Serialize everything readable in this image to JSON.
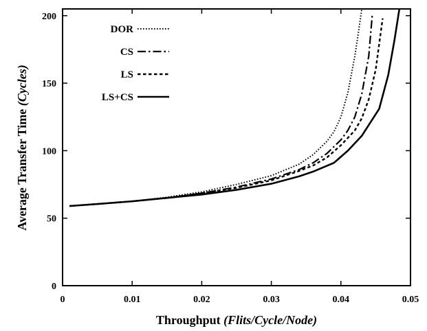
{
  "chart_data": {
    "type": "line",
    "title": "",
    "xlabel": "Throughput",
    "xlabel_unit": "(Flits/Cycle/Node)",
    "ylabel": "Average Transfer Time",
    "ylabel_unit": "(Cycles)",
    "xlim": [
      0,
      0.05
    ],
    "ylim": [
      0,
      205
    ],
    "x_ticks": [
      0,
      0.01,
      0.02,
      0.03,
      0.04,
      0.05
    ],
    "x_tick_labels": [
      "0",
      "0.01",
      "0.02",
      "0.03",
      "0.04",
      "0.05"
    ],
    "y_ticks": [
      0,
      50,
      100,
      150,
      200
    ],
    "y_tick_labels": [
      "0",
      "50",
      "100",
      "150",
      "200"
    ],
    "grid": false,
    "legend_position": "top-left",
    "series": [
      {
        "name": "DOR",
        "dash": "dotted",
        "x": [
          0.001,
          0.005,
          0.01,
          0.015,
          0.02,
          0.025,
          0.03,
          0.034,
          0.036,
          0.038,
          0.039,
          0.04,
          0.041,
          0.042,
          0.0425,
          0.043
        ],
        "y": [
          59,
          60.5,
          62.5,
          65.5,
          69.5,
          75,
          81.5,
          90,
          97,
          107,
          114,
          125,
          143,
          170,
          187,
          205
        ]
      },
      {
        "name": "CS",
        "dash": "dash-dot",
        "x": [
          0.001,
          0.005,
          0.01,
          0.015,
          0.02,
          0.025,
          0.03,
          0.034,
          0.036,
          0.038,
          0.04,
          0.041,
          0.042,
          0.043,
          0.044,
          0.0445
        ],
        "y": [
          59,
          60.5,
          62.5,
          65,
          68.5,
          73,
          79,
          86,
          91,
          98,
          108,
          115,
          125,
          142,
          170,
          200
        ]
      },
      {
        "name": "LS",
        "dash": "dashed",
        "x": [
          0.001,
          0.005,
          0.01,
          0.015,
          0.02,
          0.025,
          0.03,
          0.034,
          0.036,
          0.038,
          0.04,
          0.042,
          0.043,
          0.044,
          0.045,
          0.046
        ],
        "y": [
          59,
          60.5,
          62.5,
          65,
          68.5,
          72.5,
          78,
          85,
          89,
          95,
          104,
          115,
          124,
          138,
          160,
          198
        ]
      },
      {
        "name": "LS+CS",
        "dash": "solid",
        "x": [
          0.001,
          0.005,
          0.01,
          0.015,
          0.02,
          0.025,
          0.03,
          0.034,
          0.036,
          0.039,
          0.041,
          0.043,
          0.0455,
          0.0468,
          0.0477,
          0.0484
        ],
        "y": [
          59,
          60.5,
          62.5,
          65,
          67.5,
          71,
          75.5,
          81,
          84.5,
          91,
          100,
          111,
          131,
          156,
          182,
          205
        ]
      }
    ]
  }
}
